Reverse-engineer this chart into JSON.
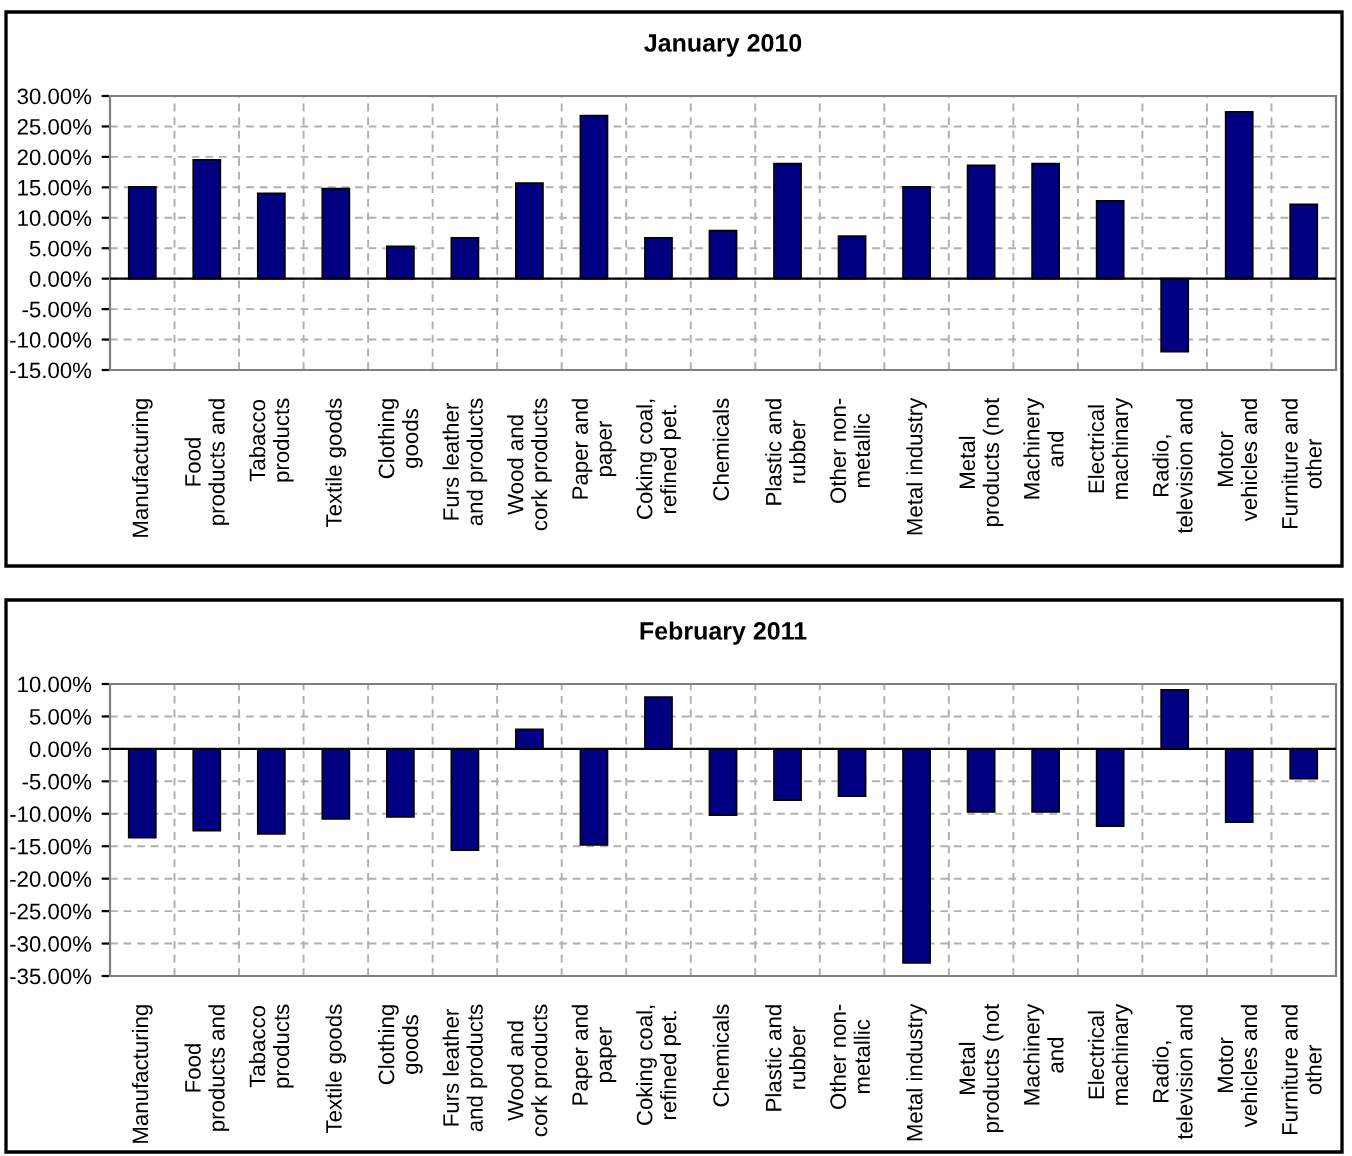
{
  "chart_data": [
    {
      "type": "bar",
      "title": "January 2010",
      "categories": [
        "Manufacturing",
        "Food\nproducts and",
        "Tabacco\nproducts",
        "Textile goods",
        "Clothing\ngoods",
        "Furs leather\nand products",
        "Wood and\ncork products",
        "Paper and\npaper",
        "Coking coal,\nrefined pet.",
        "Chemicals",
        "Plastic and\nrubber",
        "Other non-\nmetallic",
        "Metal industry",
        "Metal\nproducts (not",
        "Machinery\nand",
        "Electrical\nmachinary",
        "Radio,\ntelevision and",
        "Motor\nvehicles and",
        "Furniture and\nother"
      ],
      "values": [
        15.1,
        19.5,
        14.0,
        14.8,
        5.3,
        6.7,
        15.7,
        26.8,
        6.7,
        7.9,
        18.9,
        7.0,
        15.1,
        18.6,
        18.9,
        12.8,
        -12.0,
        27.4,
        12.2
      ],
      "color": "#000080",
      "ylim": [
        -15,
        30
      ],
      "yticks": [
        {
          "value": -15,
          "label": "-15.00%"
        },
        {
          "value": -10,
          "label": "-10.00%"
        },
        {
          "value": -5,
          "label": "-5.00%"
        },
        {
          "value": 0,
          "label": "0.00%"
        },
        {
          "value": 5,
          "label": "5.00%"
        },
        {
          "value": 10,
          "label": "10.00%"
        },
        {
          "value": 15,
          "label": "15.00%"
        },
        {
          "value": 20,
          "label": "20.00%"
        },
        {
          "value": 25,
          "label": "25.00%"
        },
        {
          "value": 30,
          "label": "30.00%"
        }
      ],
      "grid": true
    },
    {
      "type": "bar",
      "title": "February 2011",
      "categories": [
        "Manufacturing",
        "Food\nproducts and",
        "Tabacco\nproducts",
        "Textile goods",
        "Clothing\ngoods",
        "Furs leather\nand products",
        "Wood and\ncork products",
        "Paper and\npaper",
        "Coking coal,\nrefined pet.",
        "Chemicals",
        "Plastic and\nrubber",
        "Other non-\nmetallic",
        "Metal industry",
        "Metal\nproducts (not",
        "Machinery\nand",
        "Electrical\nmachinary",
        "Radio,\ntelevision and",
        "Motor\nvehicles and",
        "Furniture and\nother"
      ],
      "values": [
        -13.7,
        -12.6,
        -13.1,
        -10.8,
        -10.5,
        -15.6,
        3.0,
        -14.8,
        8.0,
        -10.2,
        -7.9,
        -7.3,
        -33.0,
        -9.7,
        -9.7,
        -11.9,
        9.1,
        -11.3,
        -4.6
      ],
      "color": "#000080",
      "ylim": [
        -35,
        10
      ],
      "yticks": [
        {
          "value": -35,
          "label": "-35.00%"
        },
        {
          "value": -30,
          "label": "-30.00%"
        },
        {
          "value": -25,
          "label": "-25.00%"
        },
        {
          "value": -20,
          "label": "-20.00%"
        },
        {
          "value": -15,
          "label": "-15.00%"
        },
        {
          "value": -10,
          "label": "-10.00%"
        },
        {
          "value": -5,
          "label": "-5.00%"
        },
        {
          "value": 0,
          "label": "0.00%"
        },
        {
          "value": 5,
          "label": "5.00%"
        },
        {
          "value": 10,
          "label": "10.00%"
        }
      ],
      "grid": true
    }
  ]
}
